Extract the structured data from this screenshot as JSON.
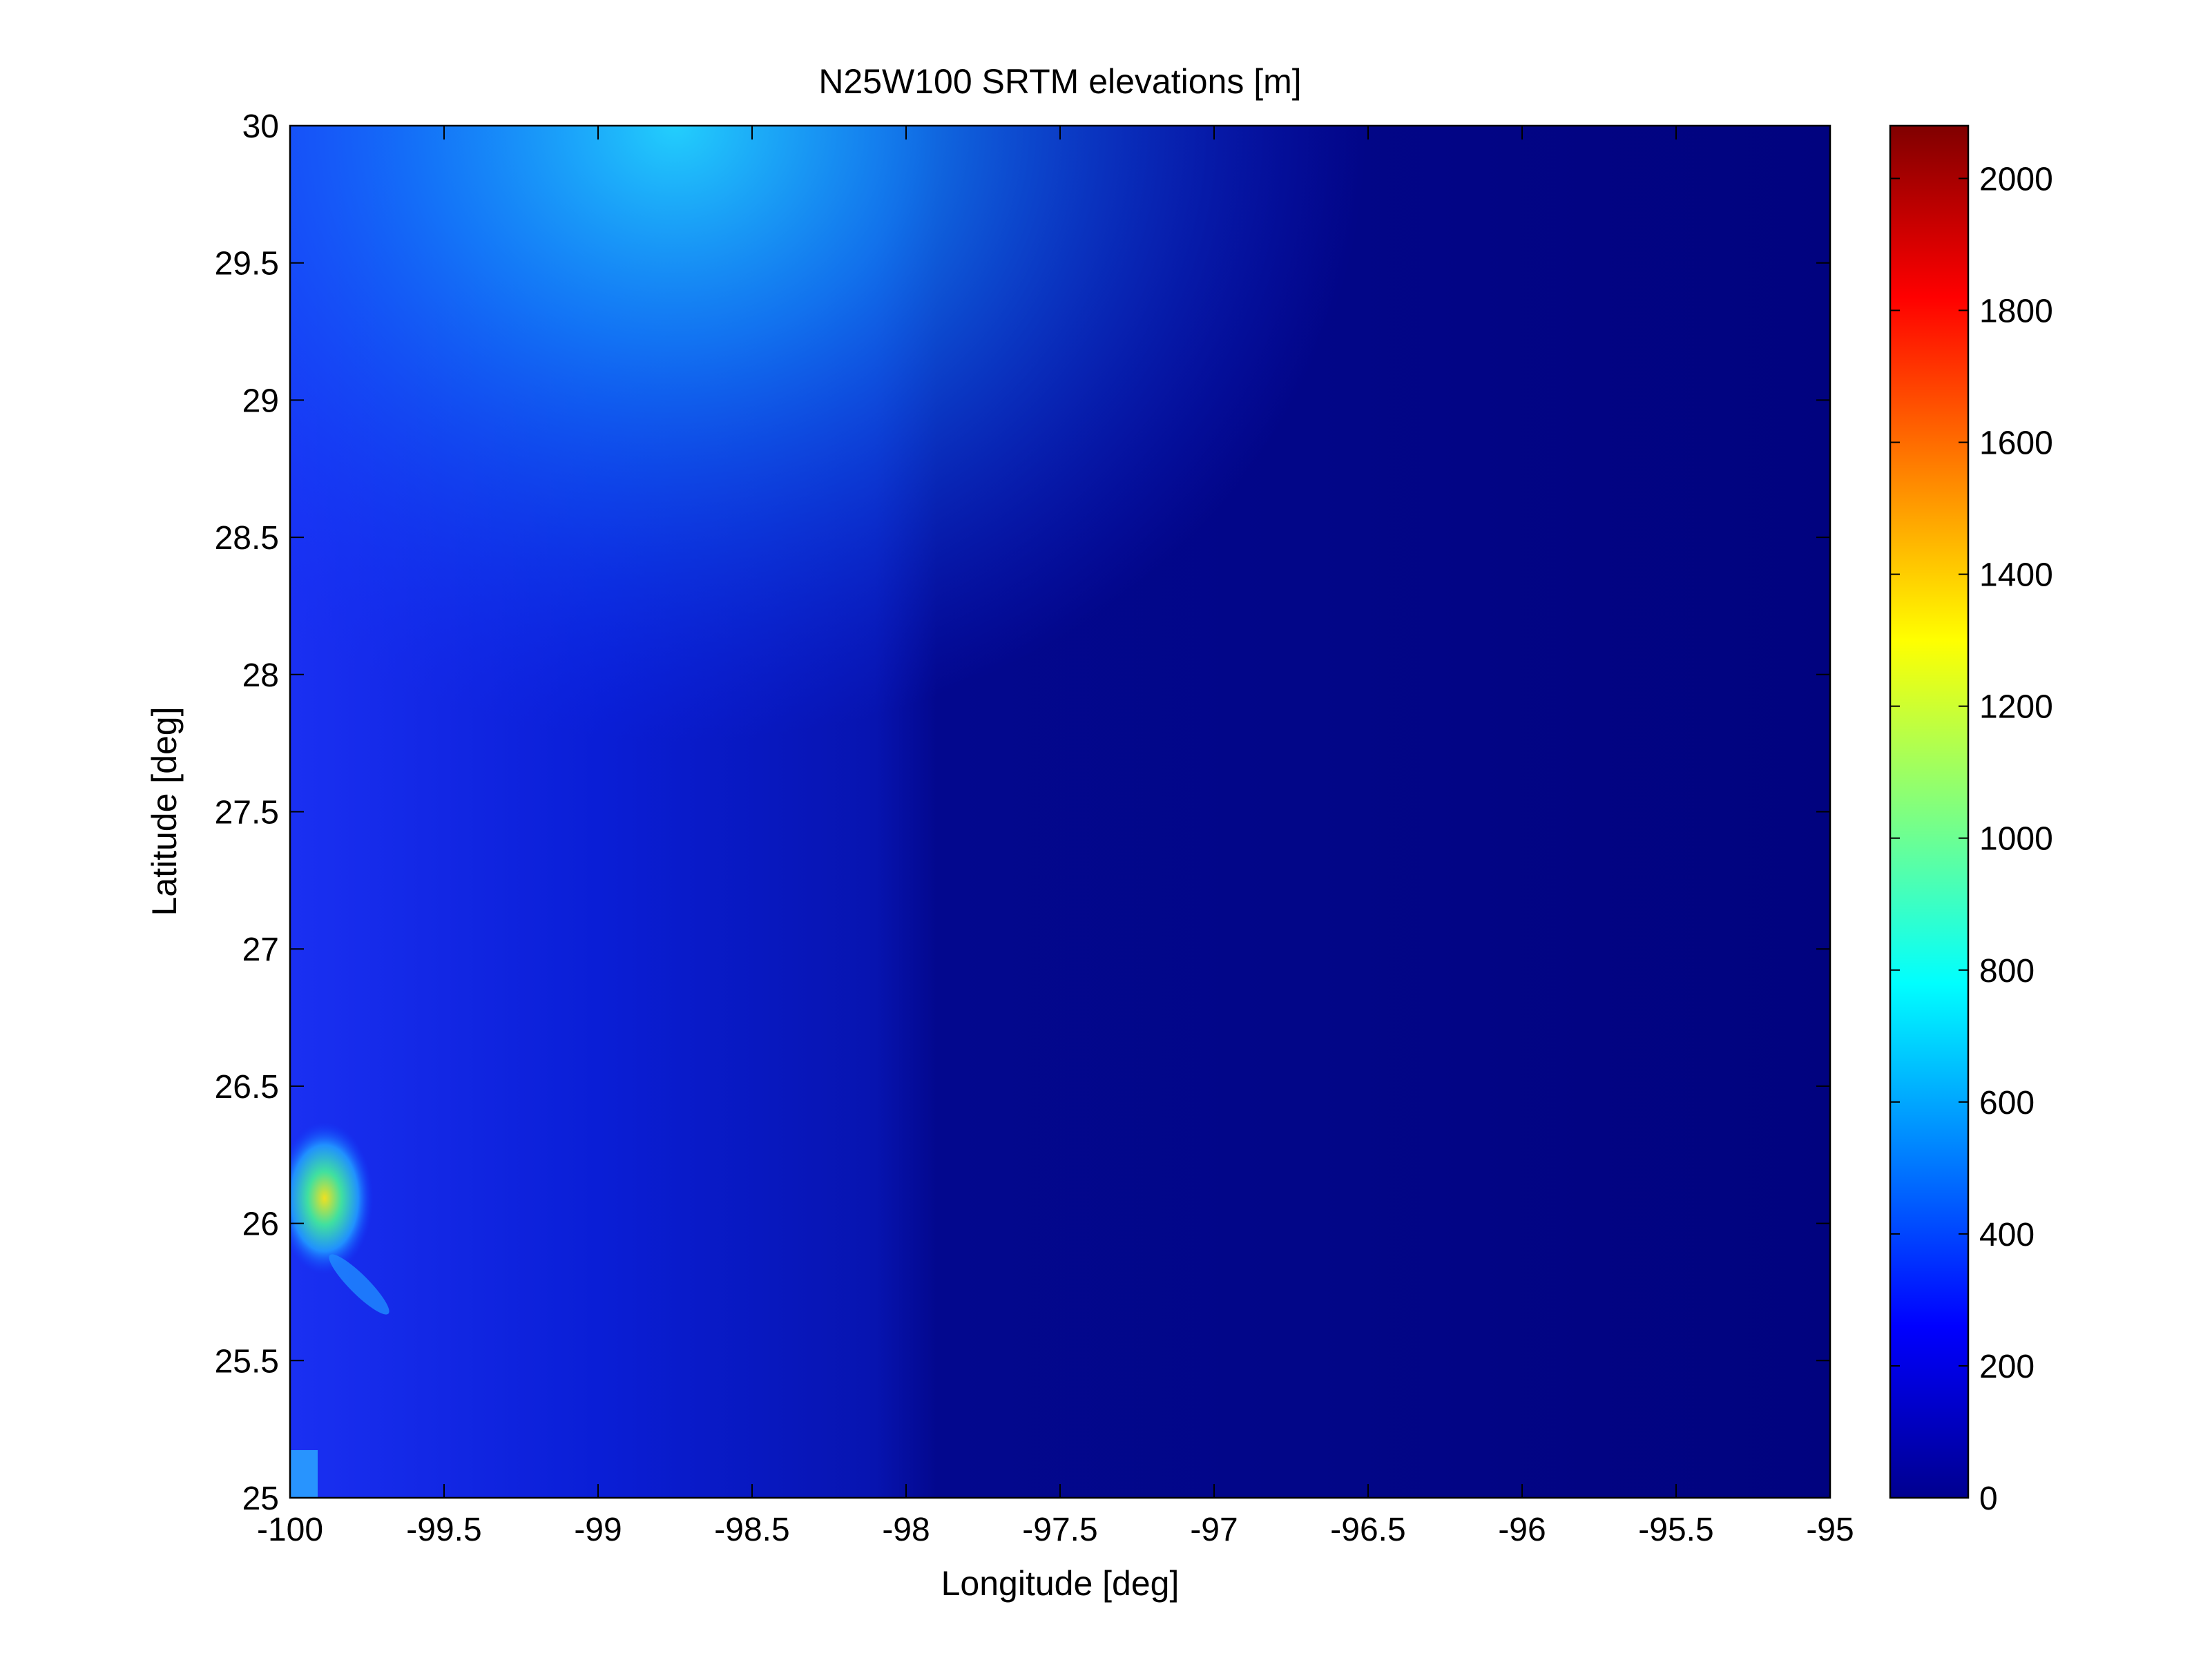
{
  "chart_data": {
    "type": "heatmap",
    "title": "N25W100 SRTM elevations [m]",
    "xlabel": "Longitude [deg]",
    "ylabel": "Latitude [deg]",
    "xlim": [
      -100,
      -95
    ],
    "ylim": [
      25,
      30
    ],
    "xticks": [
      -100,
      -99.5,
      -99,
      -98.5,
      -98,
      -97.5,
      -97,
      -96.5,
      -96,
      -95.5,
      -95
    ],
    "xtick_labels": [
      "-100",
      "-99.5",
      "-99",
      "-98.5",
      "-98",
      "-97.5",
      "-97",
      "-96.5",
      "-96",
      "-95.5",
      "-95"
    ],
    "yticks": [
      25,
      25.5,
      26,
      26.5,
      27,
      27.5,
      28,
      28.5,
      29,
      29.5,
      30
    ],
    "ytick_labels": [
      "25",
      "25.5",
      "26",
      "26.5",
      "27",
      "27.5",
      "28",
      "28.5",
      "29",
      "29.5",
      "30"
    ],
    "colorbar": {
      "colormap": "jet",
      "clim": [
        0,
        2080
      ],
      "ticks": [
        0,
        200,
        400,
        600,
        800,
        1000,
        1200,
        1400,
        1600,
        1800,
        2000
      ],
      "tick_labels": [
        "0",
        "200",
        "400",
        "600",
        "800",
        "1000",
        "1200",
        "1400",
        "1600",
        "1800",
        "2000"
      ]
    },
    "grid": false
  }
}
